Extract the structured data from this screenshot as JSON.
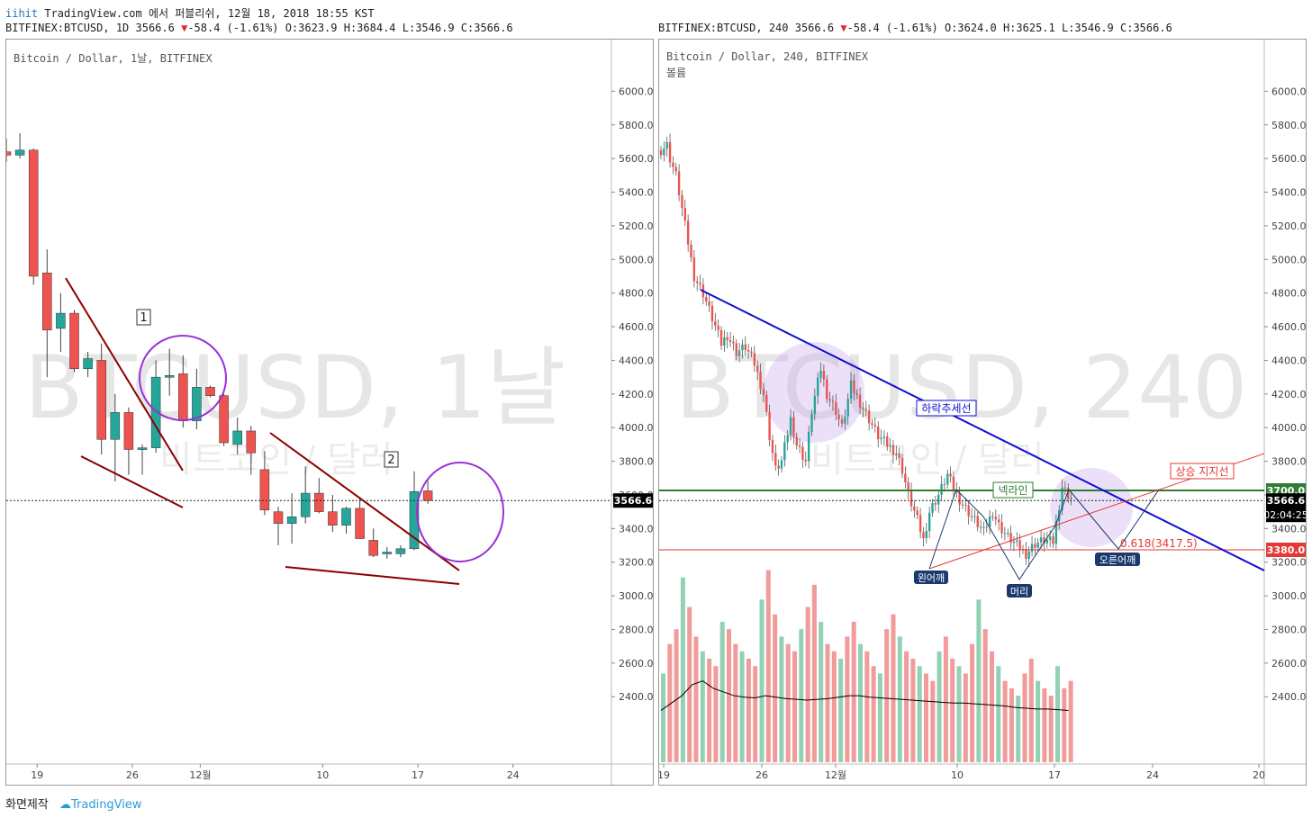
{
  "header": {
    "publish_user": "iihit",
    "publish_text": "TradingView.com 에서 퍼블리쉬, 12월 18, 2018 18:55 KST"
  },
  "left": {
    "symbol_line": "BITFINEX:BTCUSD, 1D 3566.6",
    "change": "-58.4 (-1.61%)",
    "ohlc": "O:3623.9 H:3684.4 L:3546.9 C:3566.6",
    "title": "Bitcoin / Dollar, 1날, BITFINEX",
    "watermark": "BTCUSD, 1날",
    "watermark_sub": "비트코인 / 달러",
    "price_label": "3566.6",
    "annotation_1": "1",
    "annotation_2": "2"
  },
  "right": {
    "symbol_line": "BITFINEX:BTCUSD, 240 3566.6",
    "change": "-58.4 (-1.61%)",
    "ohlc": "O:3624.0 H:3625.1 L:3546.9 C:3566.6",
    "title": "Bitcoin / Dollar, 240, BITFINEX",
    "volume_label": "볼륨",
    "watermark": "BTCUSD, 240",
    "watermark_sub": "비트코인 / 달러",
    "price_label": "3566.6",
    "countdown": "02:04:25",
    "neckline_price": "3700.0",
    "support_price": "3380.0",
    "labels": {
      "downtrend": "하락추세선",
      "neckline": "넥라인",
      "uptrend_support": "상승 지지선",
      "left_shoulder": "왼어깨",
      "head": "머리",
      "right_shoulder": "오른어깨",
      "fib": "0.618(3417.5)"
    }
  },
  "footer": {
    "made_by": "화면제작",
    "logo_text": "TradingView"
  },
  "colors": {
    "up": "#26a69a",
    "down": "#ef5350",
    "trendline_left": "#8b0000",
    "circle": "#9b30d9",
    "downtrend": "#1010d0",
    "neckline": "#2e7d32",
    "support": "#e53935"
  },
  "chart_data": [
    {
      "type": "candlestick",
      "title": "Bitcoin / Dollar, 1날, BITFINEX",
      "ylim": [
        2000,
        6200
      ],
      "yticks": [
        2400,
        2600,
        2800,
        3000,
        3200,
        3400,
        3600,
        3800,
        4000,
        4200,
        4400,
        4600,
        4800,
        5000,
        5200,
        5400,
        5600,
        5800,
        6000
      ],
      "x_tick_labels": [
        "19",
        "26",
        "12월",
        "10",
        "17",
        "24"
      ],
      "x_tick_index": [
        2,
        9,
        14,
        23,
        30,
        37
      ],
      "last_price": 3566.6,
      "candles": [
        {
          "o": 5640,
          "h": 5720,
          "l": 5580,
          "c": 5620
        },
        {
          "o": 5620,
          "h": 5750,
          "l": 5600,
          "c": 5650
        },
        {
          "o": 5650,
          "h": 5660,
          "l": 4850,
          "c": 4900
        },
        {
          "o": 4920,
          "h": 5060,
          "l": 4300,
          "c": 4580
        },
        {
          "o": 4590,
          "h": 4800,
          "l": 4450,
          "c": 4680
        },
        {
          "o": 4680,
          "h": 4700,
          "l": 4330,
          "c": 4350
        },
        {
          "o": 4350,
          "h": 4450,
          "l": 4300,
          "c": 4410
        },
        {
          "o": 4400,
          "h": 4500,
          "l": 3840,
          "c": 3930
        },
        {
          "o": 3930,
          "h": 4200,
          "l": 3680,
          "c": 4090
        },
        {
          "o": 4090,
          "h": 4120,
          "l": 3720,
          "c": 3870
        },
        {
          "o": 3870,
          "h": 3900,
          "l": 3720,
          "c": 3880
        },
        {
          "o": 3880,
          "h": 4400,
          "l": 3850,
          "c": 4300
        },
        {
          "o": 4300,
          "h": 4470,
          "l": 4190,
          "c": 4310
        },
        {
          "o": 4320,
          "h": 4430,
          "l": 4000,
          "c": 4040
        },
        {
          "o": 4040,
          "h": 4350,
          "l": 3990,
          "c": 4240
        },
        {
          "o": 4240,
          "h": 4250,
          "l": 4180,
          "c": 4190
        },
        {
          "o": 4190,
          "h": 4200,
          "l": 3890,
          "c": 3910
        },
        {
          "o": 3900,
          "h": 4060,
          "l": 3840,
          "c": 3980
        },
        {
          "o": 3980,
          "h": 4010,
          "l": 3720,
          "c": 3850
        },
        {
          "o": 3750,
          "h": 3860,
          "l": 3480,
          "c": 3510
        },
        {
          "o": 3500,
          "h": 3530,
          "l": 3300,
          "c": 3430
        },
        {
          "o": 3430,
          "h": 3610,
          "l": 3310,
          "c": 3470
        },
        {
          "o": 3470,
          "h": 3770,
          "l": 3430,
          "c": 3610
        },
        {
          "o": 3610,
          "h": 3700,
          "l": 3490,
          "c": 3500
        },
        {
          "o": 3500,
          "h": 3600,
          "l": 3380,
          "c": 3420
        },
        {
          "o": 3420,
          "h": 3530,
          "l": 3370,
          "c": 3520
        },
        {
          "o": 3520,
          "h": 3580,
          "l": 3350,
          "c": 3340
        },
        {
          "o": 3330,
          "h": 3400,
          "l": 3230,
          "c": 3240
        },
        {
          "o": 3250,
          "h": 3290,
          "l": 3220,
          "c": 3260
        },
        {
          "o": 3250,
          "h": 3300,
          "l": 3230,
          "c": 3280
        },
        {
          "o": 3280,
          "h": 3740,
          "l": 3270,
          "c": 3620
        },
        {
          "o": 3623.9,
          "h": 3684.4,
          "l": 3546.9,
          "c": 3566.6
        }
      ]
    },
    {
      "type": "candlestick",
      "title": "Bitcoin / Dollar, 240, BITFINEX",
      "ylim": [
        2000,
        6200
      ],
      "yticks": [
        2400,
        2600,
        2800,
        3000,
        3200,
        3400,
        3600,
        3800,
        4000,
        4200,
        4400,
        4600,
        4800,
        5000,
        5200,
        5400,
        5600,
        5800,
        6000
      ],
      "x_tick_labels": [
        "19",
        "26",
        "12월",
        "10",
        "17",
        "24",
        "20"
      ],
      "last_price": 3566.6,
      "levels": {
        "neckline": 3700,
        "support": 3380,
        "fib_0_618": 3417.5
      },
      "pattern": "inverse head and shoulders",
      "path": [
        [
          0,
          5650
        ],
        [
          2,
          5680
        ],
        [
          3,
          5600
        ],
        [
          5,
          5500
        ],
        [
          8,
          5200
        ],
        [
          11,
          4900
        ],
        [
          14,
          4800
        ],
        [
          17,
          4650
        ],
        [
          20,
          4500
        ],
        [
          22,
          4550
        ],
        [
          25,
          4450
        ],
        [
          28,
          4480
        ],
        [
          31,
          4380
        ],
        [
          34,
          4200
        ],
        [
          36,
          3950
        ],
        [
          38,
          3750
        ],
        [
          40,
          3800
        ],
        [
          43,
          4050
        ],
        [
          45,
          3900
        ],
        [
          48,
          3800
        ],
        [
          50,
          4100
        ],
        [
          53,
          4350
        ],
        [
          55,
          4200
        ],
        [
          58,
          4100
        ],
        [
          60,
          4000
        ],
        [
          63,
          4250
        ],
        [
          66,
          4150
        ],
        [
          69,
          4050
        ],
        [
          72,
          3950
        ],
        [
          75,
          3900
        ],
        [
          78,
          3850
        ],
        [
          80,
          3750
        ],
        [
          82,
          3600
        ],
        [
          85,
          3450
        ],
        [
          87,
          3330
        ],
        [
          89,
          3500
        ],
        [
          92,
          3600
        ],
        [
          95,
          3720
        ],
        [
          98,
          3600
        ],
        [
          101,
          3520
        ],
        [
          104,
          3450
        ],
        [
          107,
          3380
        ],
        [
          110,
          3500
        ],
        [
          112,
          3420
        ],
        [
          115,
          3350
        ],
        [
          118,
          3300
        ],
        [
          121,
          3250
        ],
        [
          124,
          3310
        ],
        [
          127,
          3330
        ],
        [
          130,
          3320
        ],
        [
          133,
          3650
        ],
        [
          135,
          3600
        ],
        [
          137,
          3570
        ]
      ],
      "volume": [
        1200,
        1600,
        1800,
        2500,
        2100,
        1700,
        1500,
        1400,
        1300,
        1900,
        1800,
        1600,
        1500,
        1400,
        1300,
        2200,
        2600,
        2000,
        1700,
        1600,
        1500,
        1800,
        2100,
        2400,
        1900,
        1600,
        1500,
        1400,
        1700,
        1900,
        1600,
        1500,
        1300,
        1200,
        1800,
        2000,
        1700,
        1500,
        1400,
        1300,
        1200,
        1100,
        1500,
        1700,
        1400,
        1300,
        1200,
        1600,
        2200,
        1800,
        1500,
        1300,
        1100,
        1000,
        900,
        1200,
        1400,
        1100,
        1000,
        900,
        1300,
        1000,
        1100
      ],
      "volume_ma": [
        700,
        800,
        900,
        1050,
        1100,
        1000,
        950,
        900,
        880,
        870,
        900,
        880,
        860,
        850,
        840,
        850,
        860,
        880,
        900,
        900,
        880,
        870,
        860,
        850,
        840,
        830,
        820,
        810,
        800,
        800,
        790,
        780,
        770,
        760,
        740,
        730,
        720,
        720,
        710,
        700
      ]
    }
  ]
}
